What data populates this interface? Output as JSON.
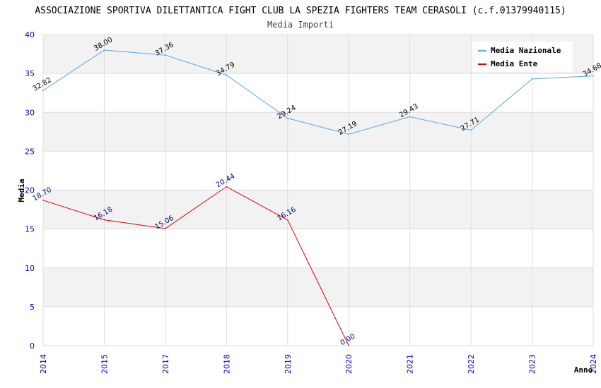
{
  "chart_data": {
    "type": "line",
    "title": "ASSOCIAZIONE SPORTIVA DILETTANTICA FIGHT CLUB LA SPEZIA FIGHTERS TEAM CERASOLI (c.f.01379940115)",
    "subtitle": "Media Importi",
    "xlabel": "Anno",
    "ylabel": "Media",
    "ylim": [
      0,
      40
    ],
    "yticks": [
      0,
      5,
      10,
      15,
      20,
      25,
      30,
      35,
      40
    ],
    "categories": [
      "2014",
      "2015",
      "2017",
      "2018",
      "2019",
      "2020",
      "2021",
      "2022",
      "2023",
      "2024"
    ],
    "grid": true,
    "legend_position": "top-right",
    "series": [
      {
        "name": "Media Nazionale",
        "color": "#5aa5e8",
        "label_color": "#000000",
        "values": [
          32.82,
          38.0,
          37.36,
          34.79,
          29.24,
          27.19,
          29.43,
          27.71,
          34.3,
          34.68
        ],
        "labels": [
          "32.82",
          "38.00",
          "37.36",
          "34.79",
          "29.24",
          "27.19",
          "29.43",
          "27.71",
          "",
          "34.68"
        ]
      },
      {
        "name": "Media Ente",
        "color": "#dd0000",
        "label_color": "#000080",
        "values": [
          18.7,
          16.18,
          15.06,
          20.44,
          16.16,
          0.0,
          null,
          null,
          null,
          null
        ],
        "labels": [
          "18.70",
          "16.18",
          "15.06",
          "20.44",
          "16.16",
          "0.00",
          "",
          "",
          "",
          ""
        ]
      }
    ]
  }
}
